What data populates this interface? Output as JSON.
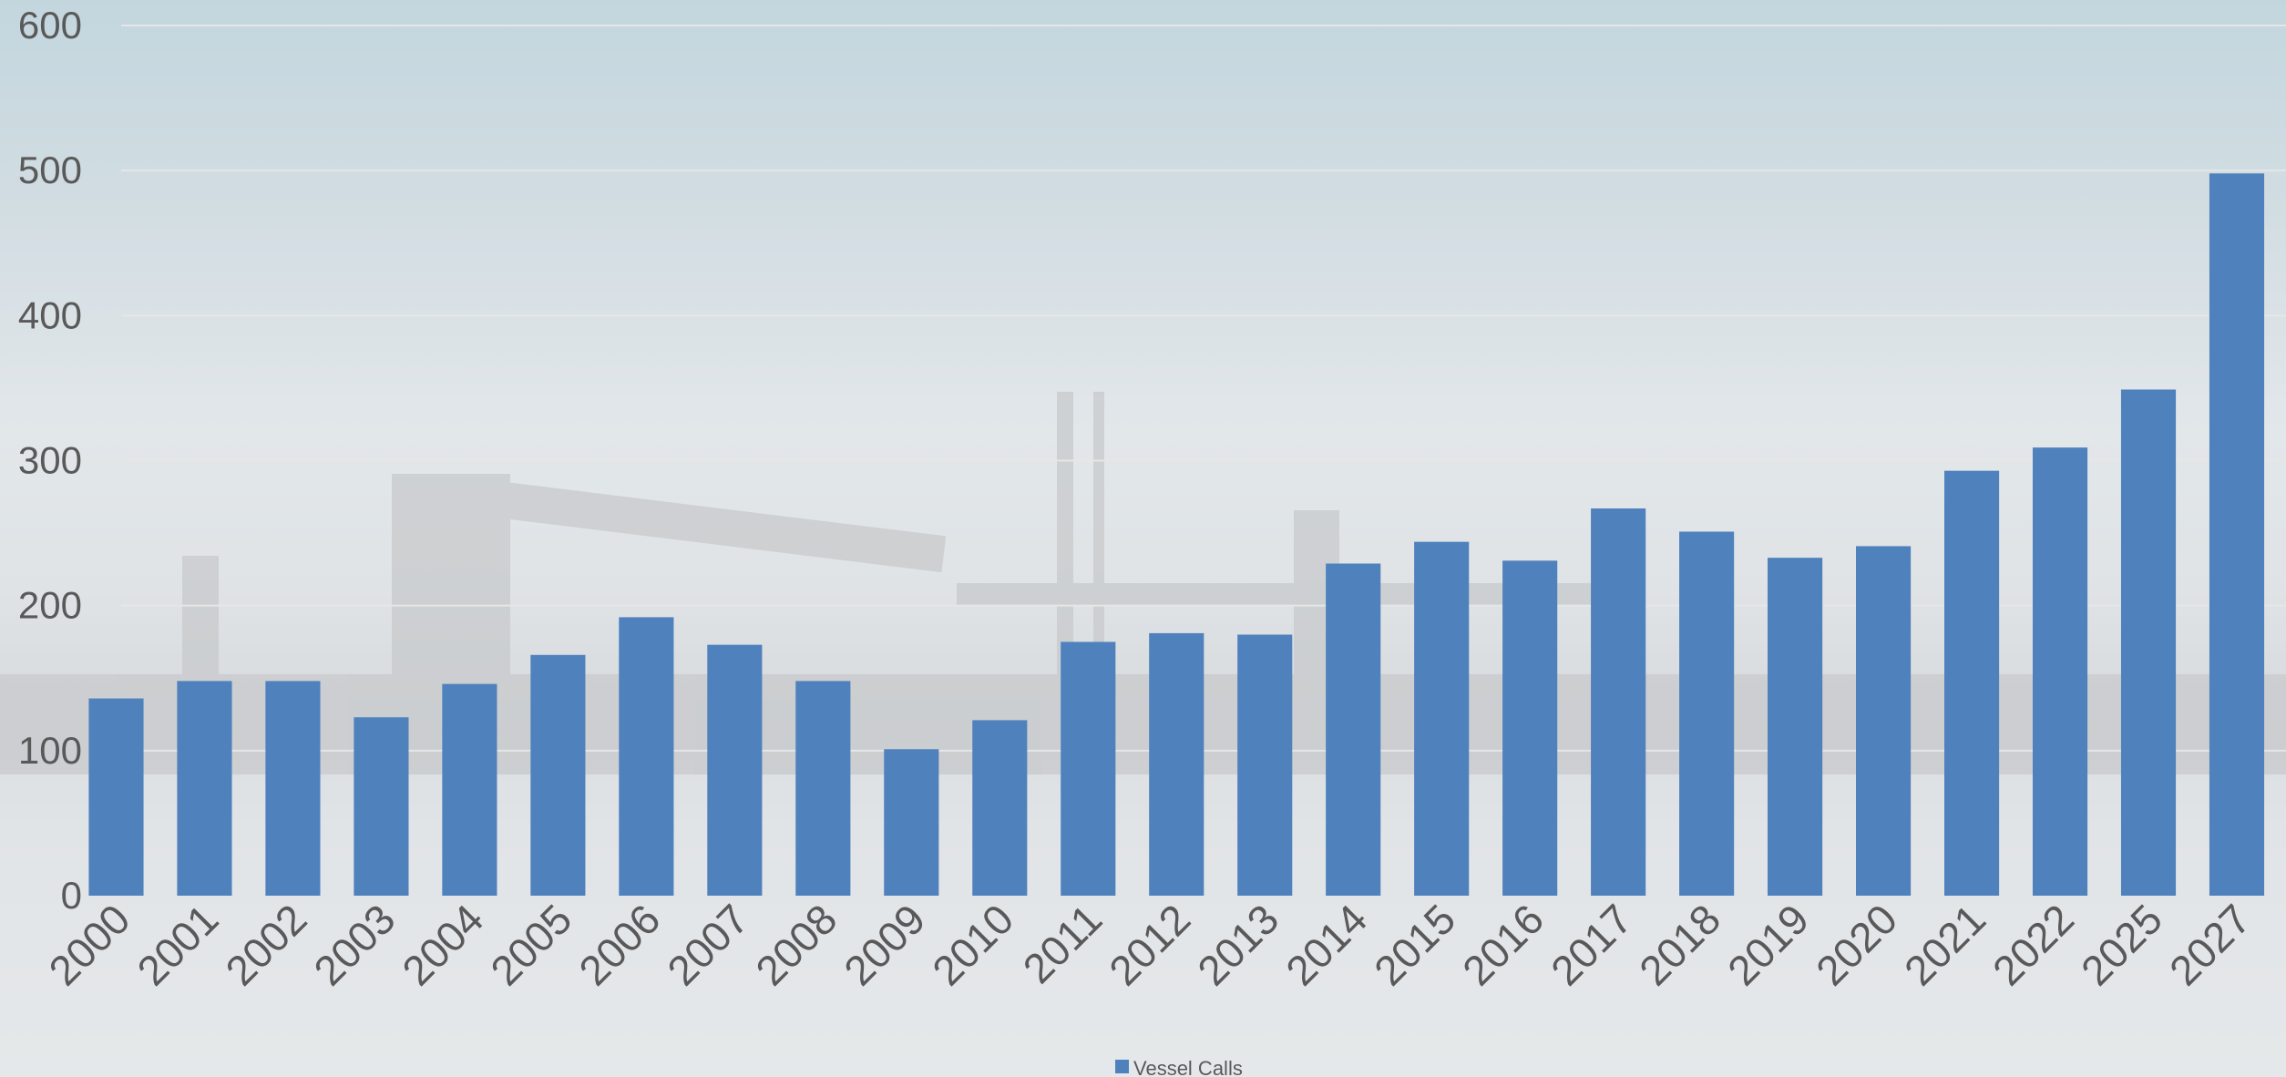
{
  "chart_data": {
    "type": "bar",
    "categories": [
      "2000",
      "2001",
      "2002",
      "2003",
      "2004",
      "2005",
      "2006",
      "2007",
      "2008",
      "2009",
      "2010",
      "2011",
      "2012",
      "2013",
      "2014",
      "2015",
      "2016",
      "2017",
      "2018",
      "2019",
      "2020",
      "2021",
      "2022",
      "2025",
      "2027"
    ],
    "series": [
      {
        "name": "Vessel Calls",
        "color": "#4f81bd",
        "values": [
          136,
          148,
          148,
          123,
          146,
          166,
          192,
          173,
          148,
          101,
          121,
          175,
          181,
          180,
          229,
          244,
          231,
          267,
          251,
          233,
          241,
          293,
          309,
          349,
          498
        ]
      }
    ],
    "ylim": [
      0,
      600
    ],
    "yticks": [
      "0",
      "100",
      "200",
      "300",
      "400",
      "500",
      "600"
    ],
    "grid": true,
    "legend": "bottom-center",
    "title": "",
    "xlabel": "",
    "ylabel": ""
  },
  "colors": {
    "bar": "#4f81bd",
    "tick_text": "#595959",
    "gridline": "#e6e6e6"
  }
}
